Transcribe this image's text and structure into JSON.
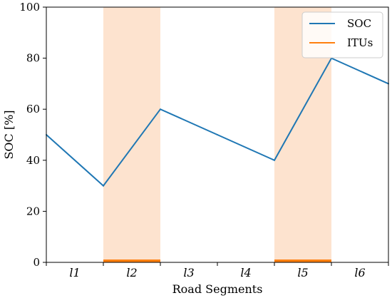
{
  "chart_data": {
    "type": "line",
    "categories": [
      "l1",
      "l2",
      "l3",
      "l4",
      "l5",
      "l6"
    ],
    "x": [
      0,
      1,
      2,
      3,
      4,
      5,
      6
    ],
    "series": [
      {
        "name": "SOC",
        "color": "#1f77b4",
        "values": [
          50,
          30,
          60,
          50,
          40,
          80,
          70
        ]
      },
      {
        "name": "ITUs",
        "color": "#ff7f0e",
        "segments": [
          [
            1,
            2
          ],
          [
            4,
            5
          ]
        ],
        "value": 0
      }
    ],
    "shaded_regions": [
      {
        "from": 1,
        "to": 2,
        "color": "#fde3cf"
      },
      {
        "from": 4,
        "to": 5,
        "color": "#fde3cf"
      }
    ],
    "xlabel": "Road Segments",
    "ylabel": "SOC [%]",
    "xlim": [
      0,
      6
    ],
    "ylim": [
      0,
      100
    ],
    "yticks": [
      0,
      20,
      40,
      60,
      80,
      100
    ],
    "legend_position": "top-right",
    "grid": false
  }
}
